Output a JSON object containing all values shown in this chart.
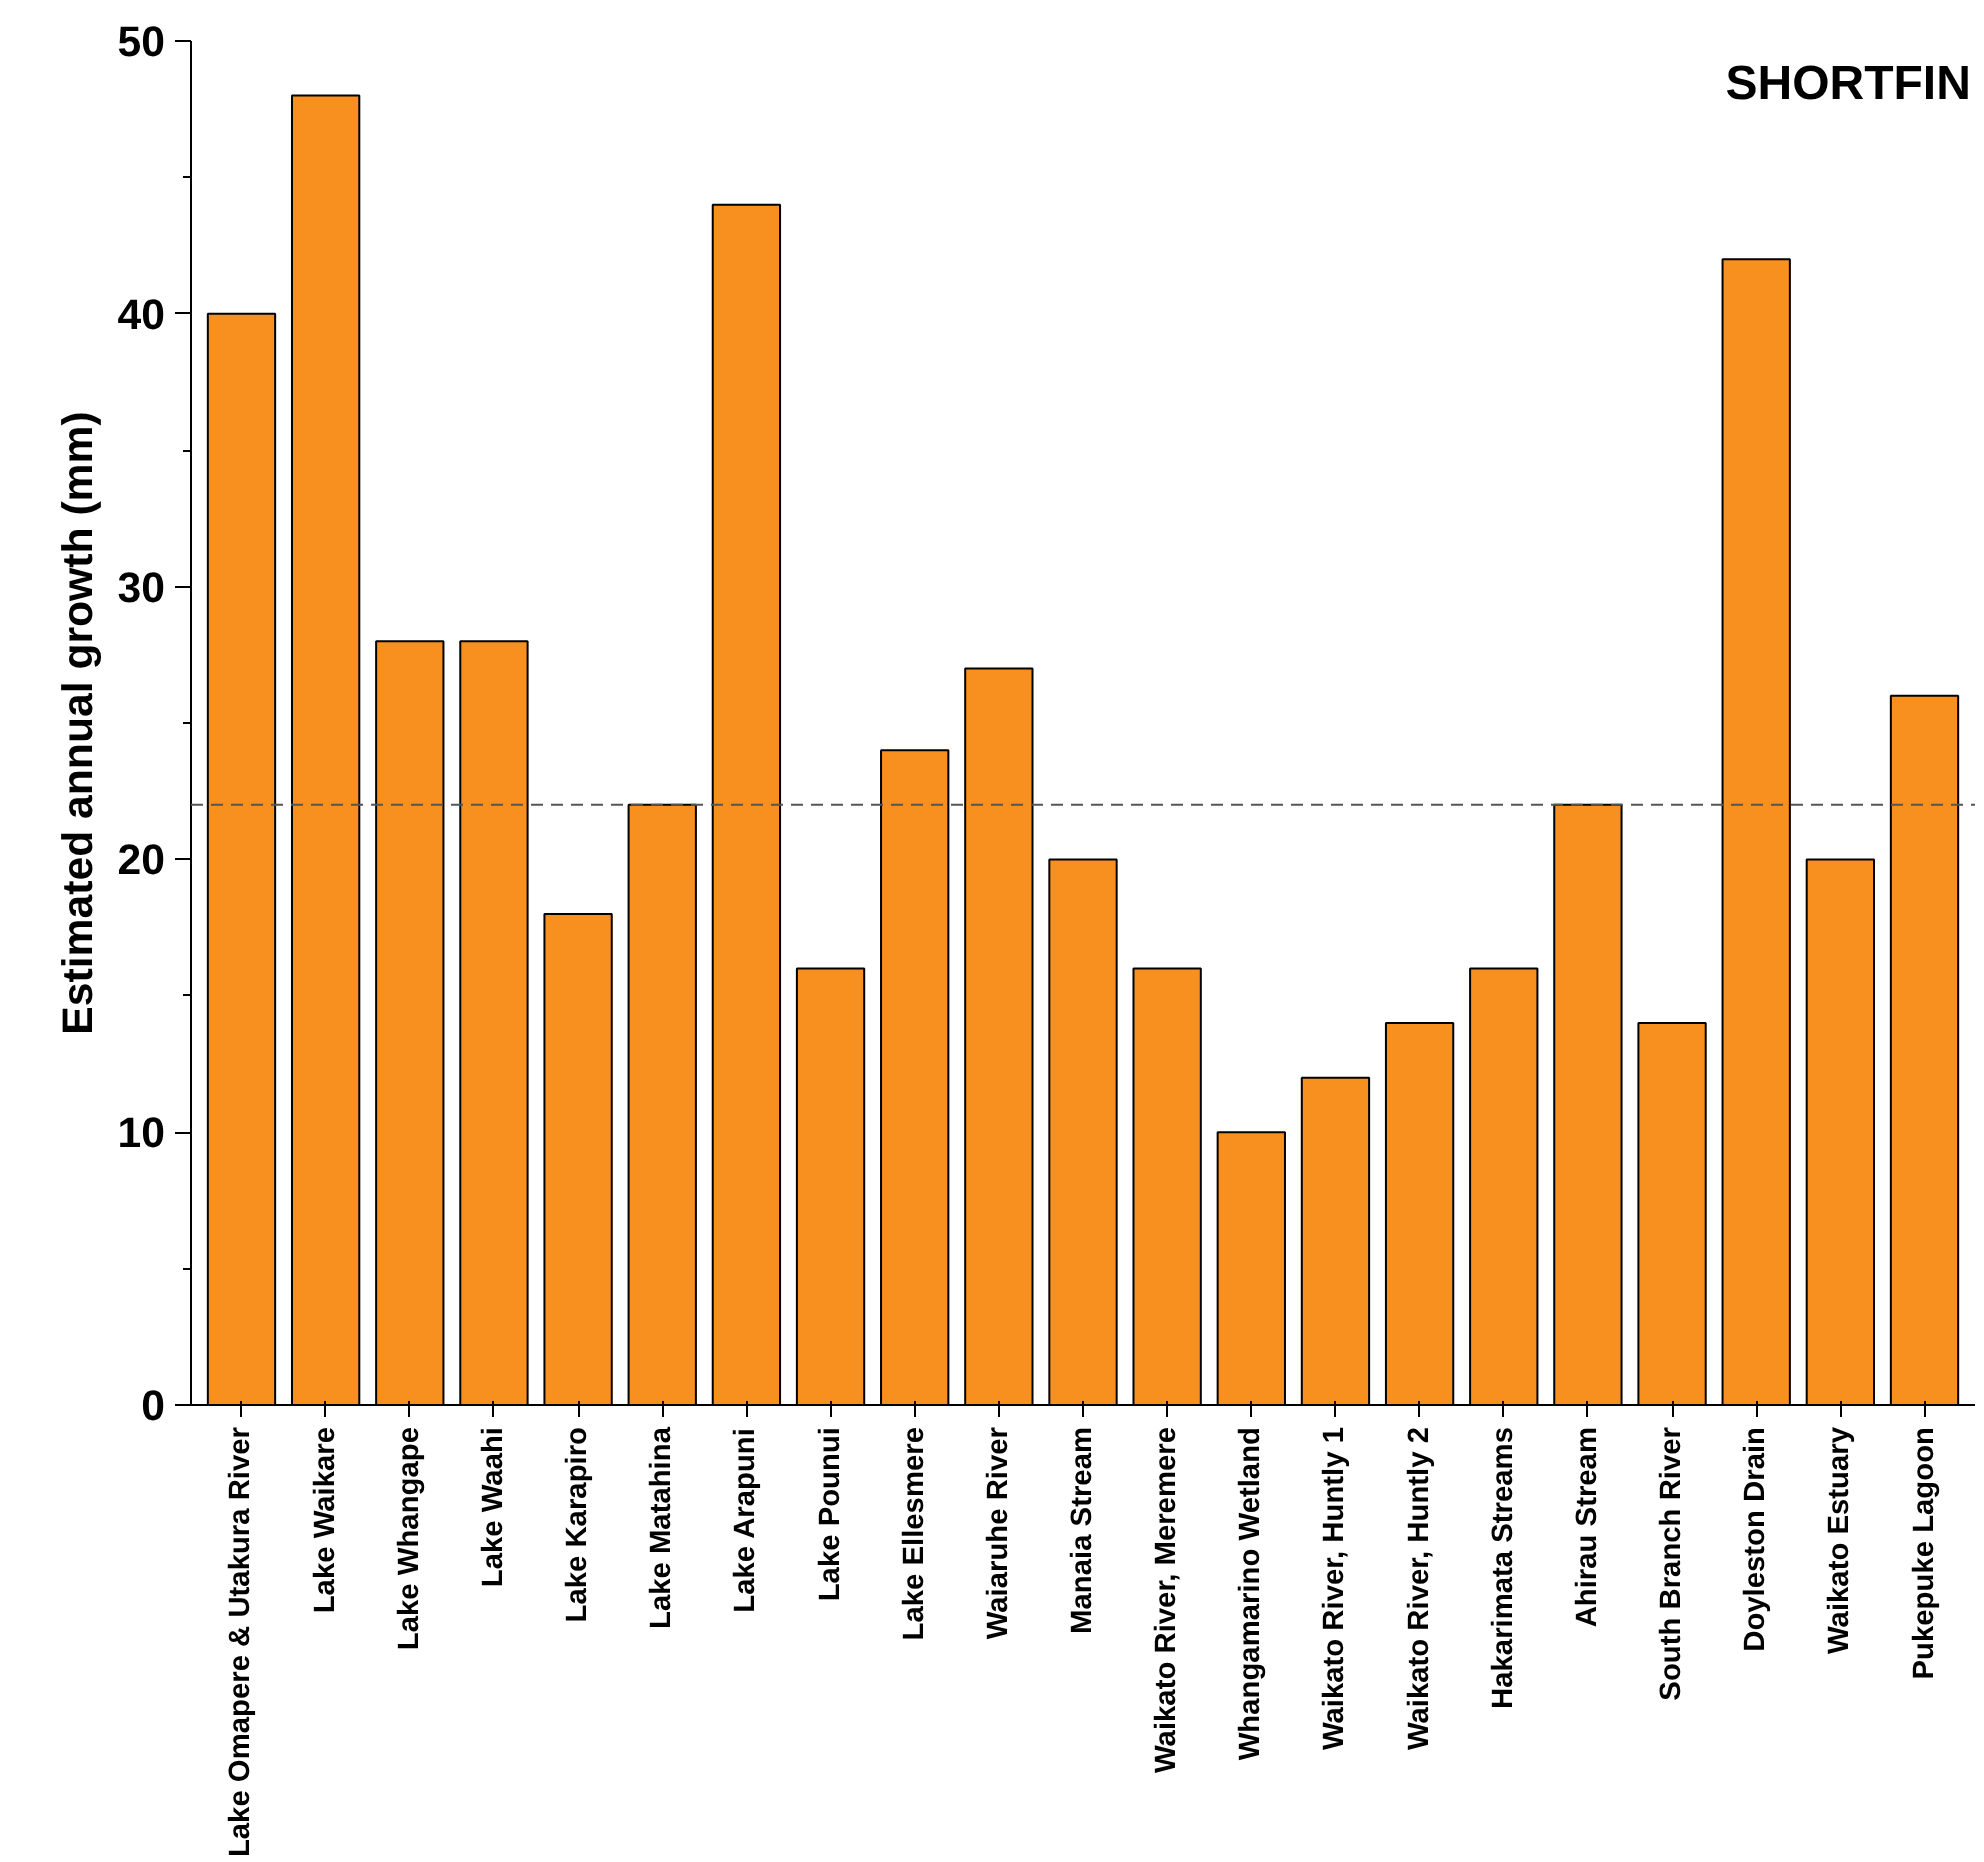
{
  "chart_data": {
    "type": "bar",
    "title": "SHORTFIN",
    "ylabel": "Estimated annual growth (mm)",
    "categories": [
      "Lake Omapere & Utakura River",
      "Lake Waikare",
      "Lake Whangape",
      "Lake Waahi",
      "Lake Karapiro",
      "Lake Matahina",
      "Lake Arapuni",
      "Lake Pounui",
      "Lake Ellesmere",
      "Waiaruhe River",
      "Manaia Stream",
      "Waikato River, Meremere",
      "Whangamarino Wetland",
      "Waikato River, Huntly 1",
      "Waikato River, Huntly 2",
      "Hakarimata Streams",
      "Ahirau Stream",
      "South Branch River",
      "Doyleston Drain",
      "Waikato Estuary",
      "Pukepuke Lagoon"
    ],
    "values": [
      40,
      48,
      28,
      28,
      18,
      22,
      44,
      16,
      24,
      27,
      20,
      16,
      10,
      12,
      14,
      16,
      22,
      14,
      42,
      20,
      26
    ],
    "color": "#f7901e",
    "ylim": [
      0,
      50
    ],
    "yticks": [
      0,
      10,
      20,
      30,
      40,
      50
    ],
    "grid": false,
    "ref_lines": [
      {
        "axis": "y",
        "value": 22,
        "label": null,
        "color": "#555555",
        "line_style": "dashed"
      }
    ]
  }
}
